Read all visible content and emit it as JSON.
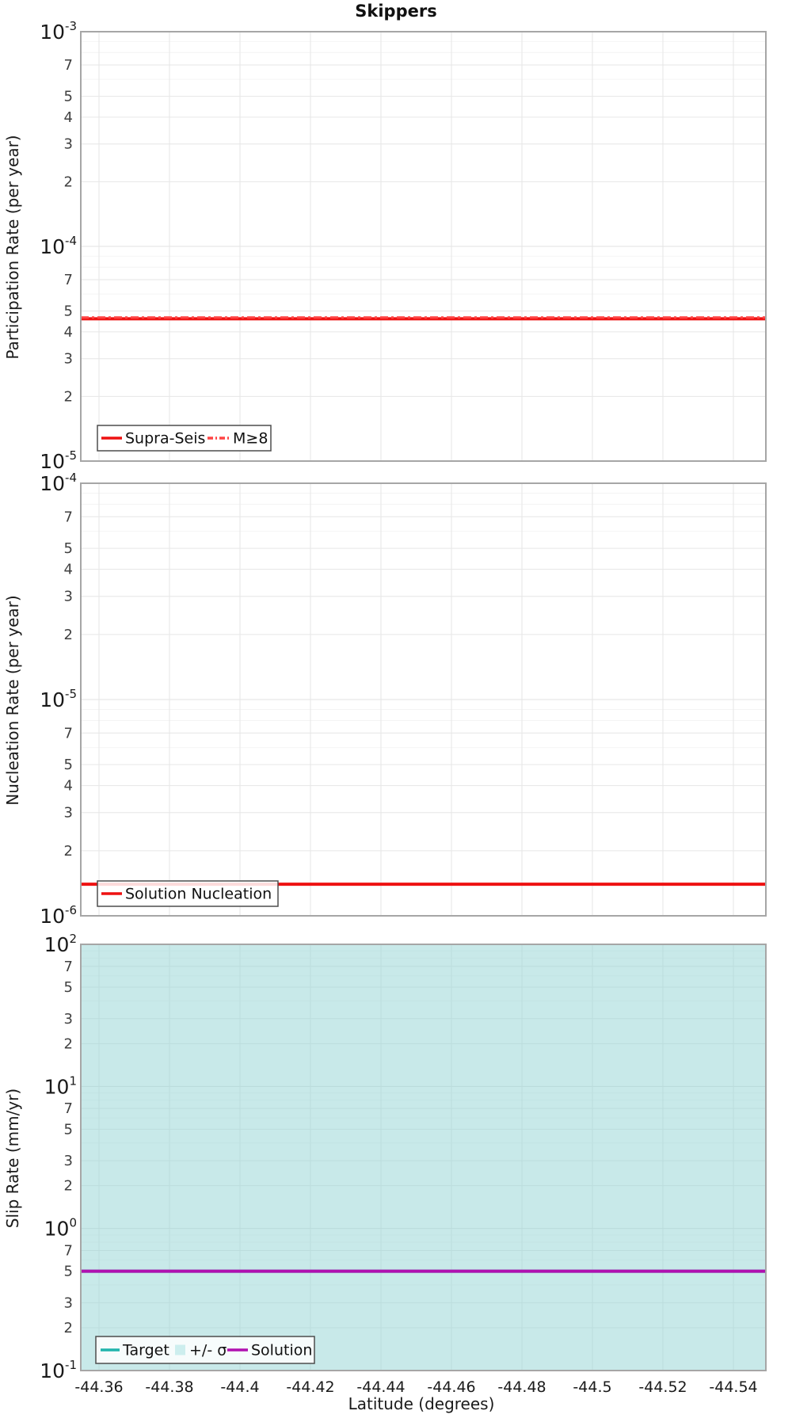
{
  "title": "Skippers",
  "x_axis": {
    "label": "Latitude (degrees)",
    "reversed": true,
    "range": [
      -44.355,
      -44.549
    ],
    "ticks": [
      {
        "value": -44.36,
        "label": "-44.36"
      },
      {
        "value": -44.38,
        "label": "-44.38"
      },
      {
        "value": -44.4,
        "label": "-44.4"
      },
      {
        "value": -44.42,
        "label": "-44.42"
      },
      {
        "value": -44.44,
        "label": "-44.44"
      },
      {
        "value": -44.46,
        "label": "-44.46"
      },
      {
        "value": -44.48,
        "label": "-44.48"
      },
      {
        "value": -44.5,
        "label": "-44.5"
      },
      {
        "value": -44.52,
        "label": "-44.52"
      },
      {
        "value": -44.54,
        "label": "-44.54"
      }
    ]
  },
  "colors": {
    "red": "#ee1111",
    "red_dash": "#ff4444",
    "teal": "#1fb4ac",
    "purple": "#b010b0",
    "band_fill": "#91d3d3",
    "legend_patch": "#cdeeee",
    "grid_labeled": "#e6e6e6",
    "grid_unlabeled": "#f4f4f4",
    "grid_decade": "#e0e0e0",
    "plot_border": "#a6a6a6",
    "tick_text": "#404040",
    "axis_text": "#1a1a1a"
  },
  "chart_data": [
    {
      "type": "line",
      "id": "participation",
      "ylabel": "Participation Rate (per year)",
      "y_scale": "log",
      "y_range": [
        1e-05,
        0.001
      ],
      "y_range_exp": [
        -5,
        -3
      ],
      "labeled_mantissas": [
        7,
        5,
        4,
        3,
        2
      ],
      "grid": true,
      "legend_position": "bottom-left",
      "series": [
        {
          "name": "Supra-Seis",
          "kind": "hline",
          "style": "solid",
          "color_key": "red",
          "value": 4.6e-05
        },
        {
          "name": "M≥8",
          "kind": "hline",
          "style": "dashdot",
          "color_key": "red_dash",
          "value": 4.6e-05
        }
      ]
    },
    {
      "type": "line",
      "id": "nucleation",
      "ylabel": "Nucleation Rate (per year)",
      "y_scale": "log",
      "y_range": [
        1e-06,
        0.0001
      ],
      "y_range_exp": [
        -6,
        -4
      ],
      "labeled_mantissas": [
        7,
        5,
        4,
        3,
        2
      ],
      "grid": true,
      "legend_position": "bottom-left",
      "series": [
        {
          "name": "Solution Nucleation",
          "kind": "hline",
          "style": "solid",
          "color_key": "red",
          "value": 1.4e-06
        }
      ]
    },
    {
      "type": "line",
      "id": "slip-rate",
      "ylabel": "Slip Rate (mm/yr)",
      "y_scale": "log",
      "y_range": [
        0.1,
        100
      ],
      "y_range_exp": [
        -1,
        2
      ],
      "labeled_mantissas": [
        7,
        5,
        3,
        2
      ],
      "grid": true,
      "legend_position": "bottom-left",
      "band": {
        "name": "+/- σ",
        "y_from": 0.1,
        "y_to": 100,
        "color_key": "band_fill",
        "opacity": 0.5
      },
      "series": [
        {
          "name": "Target",
          "kind": "hline",
          "style": "solid",
          "color_key": "teal",
          "value": 0.5
        },
        {
          "name": "Solution",
          "kind": "hline",
          "style": "solid",
          "color_key": "purple",
          "value": 0.5
        }
      ]
    }
  ]
}
